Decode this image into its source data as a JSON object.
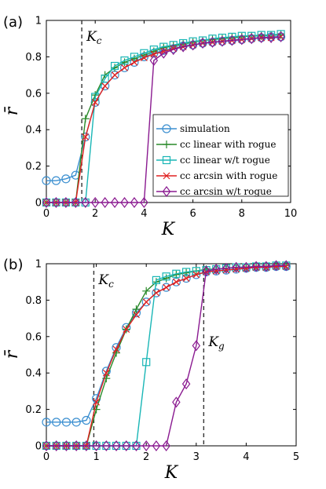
{
  "colors": {
    "simulation": "#3b8fd0",
    "cc_linear_with_rogue": "#2a8a2a",
    "cc_linear_wt_rogue": "#19b6b6",
    "cc_arcsin_with_rogue": "#e02020",
    "cc_arcsin_wt_rogue": "#8a1a90"
  },
  "chart_data": [
    {
      "type": "line",
      "panel": "(a)",
      "xlabel": "K",
      "ylabel": "r̄",
      "xlim": [
        0,
        10
      ],
      "ylim": [
        0,
        1
      ],
      "xticks": [
        0,
        2,
        4,
        6,
        8,
        10
      ],
      "yticks": [
        0,
        0.2,
        0.4,
        0.6,
        0.8,
        1
      ],
      "xtick_labels": [
        "0",
        "2",
        "4",
        "6",
        "8",
        "10"
      ],
      "ytick_labels": [
        "0",
        "0.2",
        "0.4",
        "0.6",
        "0.8",
        "1"
      ],
      "vlines": [
        {
          "x": 1.45,
          "label": "Kc"
        }
      ],
      "legend": {
        "position": "inside-right",
        "entries": [
          "simulation",
          "cc linear with rogue",
          "cc linear w/t rogue",
          "cc arcsin with rogue",
          "cc arcsin w/t rogue"
        ]
      },
      "series": [
        {
          "name": "simulation",
          "marker": "circle",
          "x": [
            0,
            0.4,
            0.8,
            1.2,
            1.6,
            2.0,
            2.4,
            2.8,
            3.2,
            3.6,
            4.0,
            4.4,
            4.8,
            5.2,
            5.6,
            6.0,
            6.4,
            6.8,
            7.2,
            7.6,
            8.0,
            8.4,
            8.8,
            9.2,
            9.6
          ],
          "y": [
            0.12,
            0.12,
            0.13,
            0.15,
            0.36,
            0.55,
            0.64,
            0.7,
            0.74,
            0.77,
            0.8,
            0.82,
            0.835,
            0.845,
            0.86,
            0.865,
            0.875,
            0.88,
            0.885,
            0.89,
            0.895,
            0.9,
            0.905,
            0.91,
            0.91
          ]
        },
        {
          "name": "cc linear with rogue",
          "marker": "plus",
          "x": [
            0,
            0.4,
            0.8,
            1.2,
            1.6,
            2.0,
            2.4,
            2.8,
            3.2,
            3.6,
            4.0,
            4.4,
            4.8,
            5.2,
            5.6,
            6.0,
            6.4,
            6.8,
            7.2,
            7.6,
            8.0,
            8.4,
            8.8,
            9.2,
            9.6
          ],
          "y": [
            0,
            0,
            0,
            0,
            0.46,
            0.59,
            0.7,
            0.74,
            0.77,
            0.79,
            0.81,
            0.83,
            0.85,
            0.86,
            0.87,
            0.88,
            0.89,
            0.895,
            0.9,
            0.905,
            0.91,
            0.915,
            0.915,
            0.92,
            0.92
          ]
        },
        {
          "name": "cc linear w/t rogue",
          "marker": "square",
          "x": [
            0,
            0.4,
            0.8,
            1.2,
            1.6,
            2.0,
            2.4,
            2.8,
            3.2,
            3.6,
            4.0,
            4.4,
            4.8,
            5.2,
            5.6,
            6.0,
            6.4,
            6.8,
            7.2,
            7.6,
            8.0,
            8.4,
            8.8,
            9.2,
            9.6
          ],
          "y": [
            0,
            0,
            0,
            0,
            0,
            0.58,
            0.68,
            0.75,
            0.78,
            0.8,
            0.82,
            0.84,
            0.855,
            0.865,
            0.875,
            0.885,
            0.89,
            0.9,
            0.905,
            0.91,
            0.915,
            0.915,
            0.92,
            0.92,
            0.925
          ]
        },
        {
          "name": "cc arcsin with rogue",
          "marker": "x",
          "x": [
            0,
            0.4,
            0.8,
            1.2,
            1.6,
            2.0,
            2.4,
            2.8,
            3.2,
            3.6,
            4.0,
            4.4,
            4.8,
            5.2,
            5.6,
            6.0,
            6.4,
            6.8,
            7.2,
            7.6,
            8.0,
            8.4,
            8.8,
            9.2,
            9.6
          ],
          "y": [
            0,
            0,
            0,
            0,
            0.36,
            0.55,
            0.64,
            0.7,
            0.74,
            0.77,
            0.795,
            0.815,
            0.83,
            0.845,
            0.855,
            0.865,
            0.875,
            0.88,
            0.885,
            0.89,
            0.895,
            0.9,
            0.905,
            0.905,
            0.91
          ]
        },
        {
          "name": "cc arcsin w/t rogue",
          "marker": "diamond",
          "x": [
            0,
            0.4,
            0.8,
            1.2,
            1.6,
            2.0,
            2.4,
            2.8,
            3.2,
            3.6,
            4.0,
            4.4,
            4.8,
            5.2,
            5.6,
            6.0,
            6.4,
            6.8,
            7.2,
            7.6,
            8.0,
            8.4,
            8.8,
            9.2,
            9.6
          ],
          "y": [
            0,
            0,
            0,
            0,
            0,
            0,
            0,
            0,
            0,
            0,
            0,
            0.78,
            0.82,
            0.84,
            0.855,
            0.865,
            0.875,
            0.88,
            0.885,
            0.89,
            0.895,
            0.9,
            0.905,
            0.905,
            0.91
          ]
        }
      ]
    },
    {
      "type": "line",
      "panel": "(b)",
      "xlabel": "K",
      "ylabel": "r̄",
      "xlim": [
        0,
        5
      ],
      "ylim": [
        0,
        1
      ],
      "xticks": [
        0,
        1,
        2,
        3,
        4,
        5
      ],
      "yticks": [
        0,
        0.2,
        0.4,
        0.6,
        0.8,
        1
      ],
      "xtick_labels": [
        "0",
        "1",
        "2",
        "3",
        "4",
        "5"
      ],
      "ytick_labels": [
        "0",
        "0.2",
        "0.4",
        "0.6",
        "0.8",
        "1"
      ],
      "vlines": [
        {
          "x": 0.95,
          "label": "Kc"
        },
        {
          "x": 3.15,
          "label": "Kg"
        }
      ],
      "series": [
        {
          "name": "simulation",
          "marker": "circle",
          "x": [
            0,
            0.2,
            0.4,
            0.6,
            0.8,
            1.0,
            1.2,
            1.4,
            1.6,
            1.8,
            2.0,
            2.2,
            2.4,
            2.6,
            2.8,
            3.0,
            3.2,
            3.4,
            3.6,
            3.8,
            4.0,
            4.2,
            4.4,
            4.6,
            4.8
          ],
          "y": [
            0.13,
            0.13,
            0.13,
            0.13,
            0.14,
            0.26,
            0.41,
            0.54,
            0.65,
            0.73,
            0.79,
            0.84,
            0.87,
            0.9,
            0.92,
            0.94,
            0.955,
            0.96,
            0.965,
            0.97,
            0.975,
            0.98,
            0.98,
            0.985,
            0.985
          ]
        },
        {
          "name": "cc linear with rogue",
          "marker": "plus",
          "x": [
            0,
            0.2,
            0.4,
            0.6,
            0.8,
            1.0,
            1.2,
            1.4,
            1.6,
            1.8,
            2.0,
            2.2,
            2.4,
            2.6,
            2.8,
            3.0,
            3.2,
            3.4,
            3.6,
            3.8,
            4.0,
            4.2,
            4.4,
            4.6,
            4.8
          ],
          "y": [
            0,
            0,
            0,
            0,
            0,
            0.2,
            0.37,
            0.51,
            0.64,
            0.75,
            0.85,
            0.9,
            0.92,
            0.94,
            0.95,
            0.96,
            0.97,
            0.97,
            0.975,
            0.98,
            0.98,
            0.985,
            0.985,
            0.99,
            0.99
          ]
        },
        {
          "name": "cc linear w/t rogue",
          "marker": "square",
          "x": [
            0,
            0.2,
            0.4,
            0.6,
            0.8,
            1.0,
            1.2,
            1.4,
            1.6,
            1.8,
            2.0,
            2.2,
            2.4,
            2.6,
            2.8,
            3.0,
            3.2,
            3.4,
            3.6,
            3.8,
            4.0,
            4.2,
            4.4,
            4.6,
            4.8
          ],
          "y": [
            0,
            0,
            0,
            0,
            0,
            0,
            0,
            0,
            0,
            0,
            0.46,
            0.91,
            0.93,
            0.945,
            0.955,
            0.96,
            0.965,
            0.97,
            0.975,
            0.98,
            0.98,
            0.985,
            0.985,
            0.99,
            0.99
          ]
        },
        {
          "name": "cc arcsin with rogue",
          "marker": "x",
          "x": [
            0,
            0.2,
            0.4,
            0.6,
            0.8,
            1.0,
            1.2,
            1.4,
            1.6,
            1.8,
            2.0,
            2.2,
            2.4,
            2.6,
            2.8,
            3.0,
            3.2,
            3.4,
            3.6,
            3.8,
            4.0,
            4.2,
            4.4,
            4.6,
            4.8
          ],
          "y": [
            0,
            0,
            0,
            0,
            0,
            0.24,
            0.4,
            0.53,
            0.64,
            0.72,
            0.79,
            0.84,
            0.87,
            0.9,
            0.92,
            0.94,
            0.955,
            0.96,
            0.965,
            0.97,
            0.975,
            0.98,
            0.98,
            0.985,
            0.985
          ]
        },
        {
          "name": "cc arcsin w/t rogue",
          "marker": "diamond",
          "x": [
            0,
            0.2,
            0.4,
            0.6,
            0.8,
            1.0,
            1.2,
            1.4,
            1.6,
            1.8,
            2.0,
            2.2,
            2.4,
            2.6,
            2.8,
            3.0,
            3.2,
            3.4,
            3.6,
            3.8,
            4.0,
            4.2,
            4.4,
            4.6,
            4.8
          ],
          "y": [
            0,
            0,
            0,
            0,
            0,
            0,
            0,
            0,
            0,
            0,
            0,
            0,
            0,
            0.24,
            0.34,
            0.55,
            0.96,
            0.97,
            0.975,
            0.98,
            0.98,
            0.985,
            0.985,
            0.99,
            0.99
          ]
        }
      ]
    }
  ]
}
